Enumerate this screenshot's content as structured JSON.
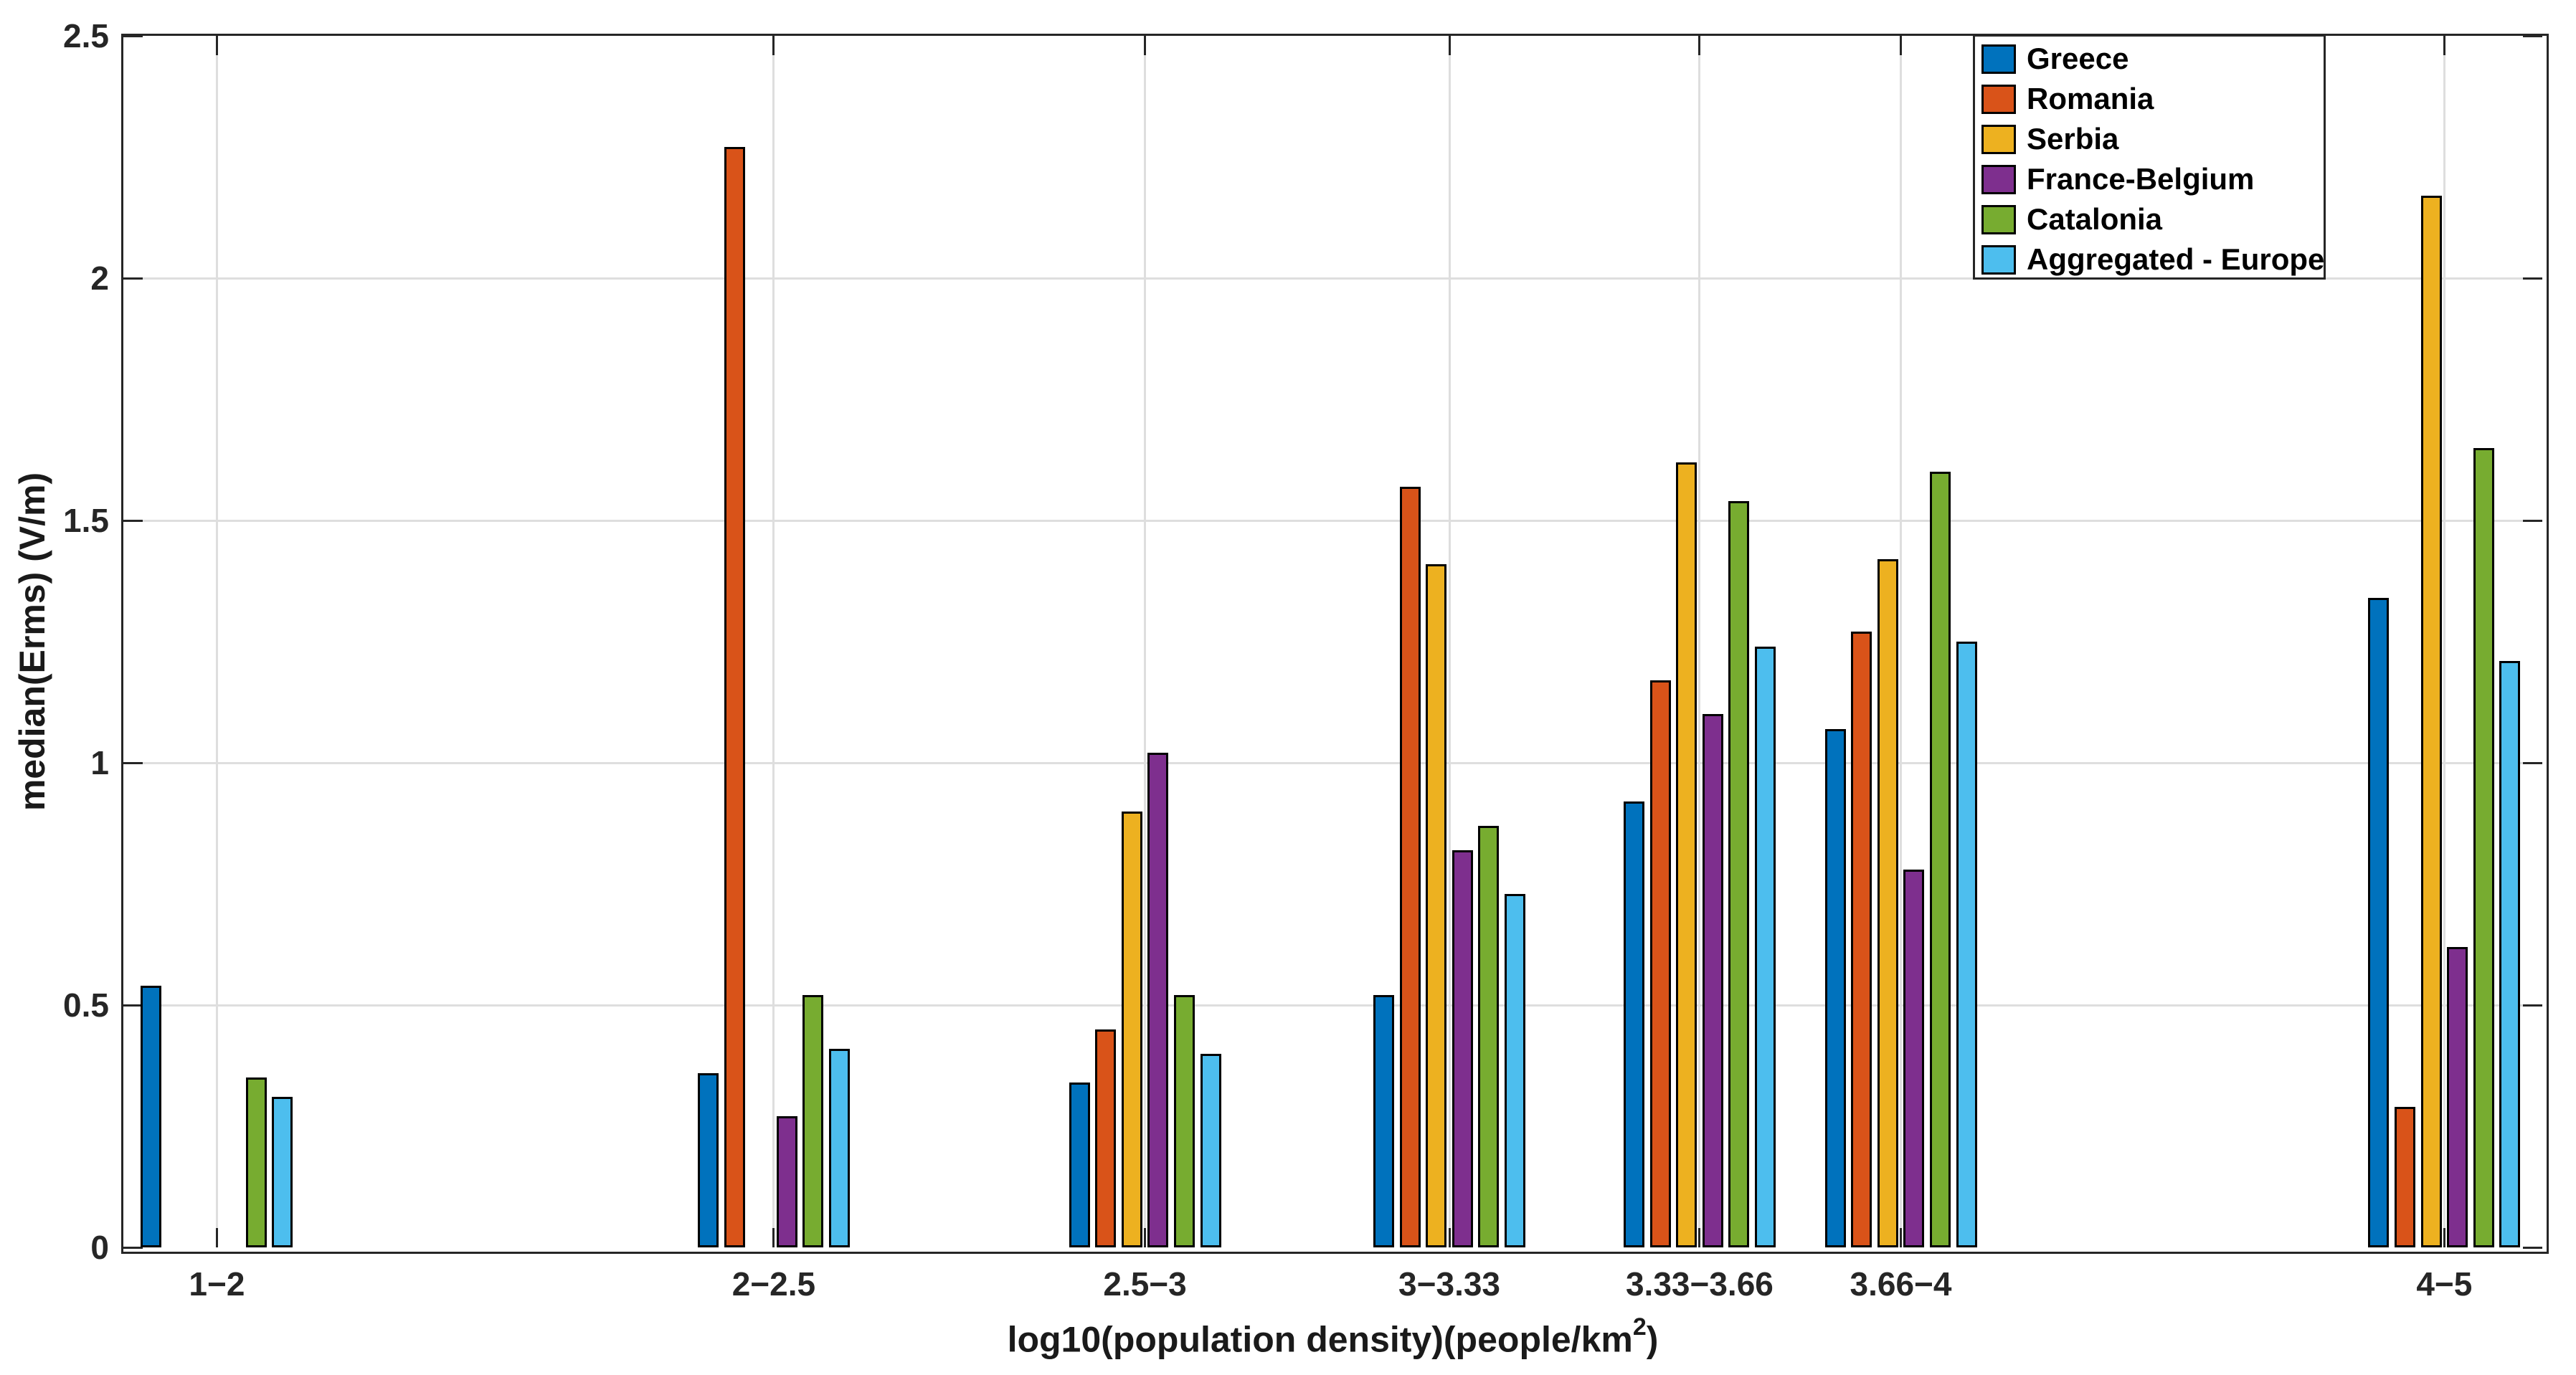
{
  "chart_data": {
    "type": "bar",
    "title": "",
    "xlabel": {
      "prefix": "log10(population density)(people/km",
      "sup": "2",
      "suffix": ")"
    },
    "ylabel": "median(Erms) (V/m)",
    "categories": [
      {
        "label": "1−2",
        "x_center": 1.5
      },
      {
        "label": "2−2.5",
        "x_center": 2.25
      },
      {
        "label": "2.5−3",
        "x_center": 2.75
      },
      {
        "label": "3−3.33",
        "x_center": 3.16
      },
      {
        "label": "3.33−3.66",
        "x_center": 3.497
      },
      {
        "label": "3.66−4",
        "x_center": 3.768
      },
      {
        "label": "4−5",
        "x_center": 4.5
      }
    ],
    "series": [
      {
        "name": "Greece",
        "color": "#0072BD",
        "values": [
          0.54,
          0.36,
          0.34,
          0.52,
          0.92,
          1.07,
          1.34
        ]
      },
      {
        "name": "Romania",
        "color": "#D95319",
        "values": [
          0,
          2.27,
          0.45,
          1.57,
          1.17,
          1.27,
          0.29
        ]
      },
      {
        "name": "Serbia",
        "color": "#EDB120",
        "values": [
          0,
          0,
          0.9,
          1.41,
          1.62,
          1.42,
          2.17
        ]
      },
      {
        "name": "France-Belgium",
        "color": "#7E2F8E",
        "values": [
          0,
          0.27,
          1.02,
          0.82,
          1.1,
          0.78,
          0.62
        ]
      },
      {
        "name": "Catalonia",
        "color": "#77AC30",
        "values": [
          0.35,
          0.52,
          0.52,
          0.87,
          1.54,
          1.6,
          1.65
        ]
      },
      {
        "name": "Aggregated - Europe",
        "color": "#4DBEEE",
        "values": [
          0.31,
          0.41,
          0.4,
          0.73,
          1.24,
          1.25,
          1.21
        ]
      }
    ],
    "ylim": [
      0,
      2.5
    ],
    "yticks": [
      "0",
      "0.5",
      "1",
      "1.5",
      "2",
      "2.5"
    ],
    "xlim": [
      1.374,
      4.632
    ],
    "grid": true,
    "legend_position": "northeast"
  }
}
